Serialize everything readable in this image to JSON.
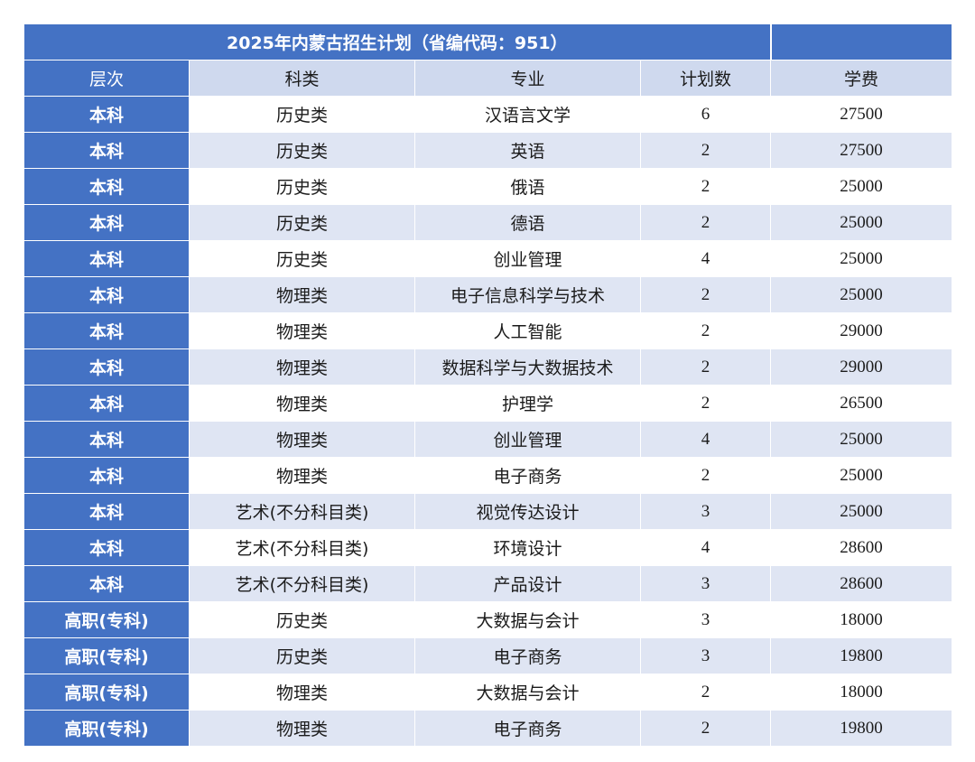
{
  "title": "2025年内蒙古招生计划（省编代码：951）",
  "title_right": "",
  "columns": [
    "层次",
    "科类",
    "专业",
    "计划数",
    "学费"
  ],
  "rows": [
    {
      "level": "本科",
      "category": "历史类",
      "major": "汉语言文学",
      "plan": "6",
      "fee": "27500"
    },
    {
      "level": "本科",
      "category": "历史类",
      "major": "英语",
      "plan": "2",
      "fee": "27500"
    },
    {
      "level": "本科",
      "category": "历史类",
      "major": "俄语",
      "plan": "2",
      "fee": "25000"
    },
    {
      "level": "本科",
      "category": "历史类",
      "major": "德语",
      "plan": "2",
      "fee": "25000"
    },
    {
      "level": "本科",
      "category": "历史类",
      "major": "创业管理",
      "plan": "4",
      "fee": "25000"
    },
    {
      "level": "本科",
      "category": "物理类",
      "major": "电子信息科学与技术",
      "plan": "2",
      "fee": "25000"
    },
    {
      "level": "本科",
      "category": "物理类",
      "major": "人工智能",
      "plan": "2",
      "fee": "29000"
    },
    {
      "level": "本科",
      "category": "物理类",
      "major": "数据科学与大数据技术",
      "plan": "2",
      "fee": "29000"
    },
    {
      "level": "本科",
      "category": "物理类",
      "major": "护理学",
      "plan": "2",
      "fee": "26500"
    },
    {
      "level": "本科",
      "category": "物理类",
      "major": "创业管理",
      "plan": "4",
      "fee": "25000"
    },
    {
      "level": "本科",
      "category": "物理类",
      "major": "电子商务",
      "plan": "2",
      "fee": "25000"
    },
    {
      "level": "本科",
      "category": "艺术(不分科目类)",
      "major": "视觉传达设计",
      "plan": "3",
      "fee": "25000"
    },
    {
      "level": "本科",
      "category": "艺术(不分科目类)",
      "major": "环境设计",
      "plan": "4",
      "fee": "28600"
    },
    {
      "level": "本科",
      "category": "艺术(不分科目类)",
      "major": "产品设计",
      "plan": "3",
      "fee": "28600"
    },
    {
      "level": "高职(专科)",
      "category": "历史类",
      "major": "大数据与会计",
      "plan": "3",
      "fee": "18000"
    },
    {
      "level": "高职(专科)",
      "category": "历史类",
      "major": "电子商务",
      "plan": "3",
      "fee": "19800"
    },
    {
      "level": "高职(专科)",
      "category": "物理类",
      "major": "大数据与会计",
      "plan": "2",
      "fee": "18000"
    },
    {
      "level": "高职(专科)",
      "category": "物理类",
      "major": "电子商务",
      "plan": "2",
      "fee": "19800"
    }
  ],
  "colors": {
    "header_blue": "#4472c4",
    "band_light": "#dfe5f3",
    "header_light": "#cfd9ee"
  }
}
